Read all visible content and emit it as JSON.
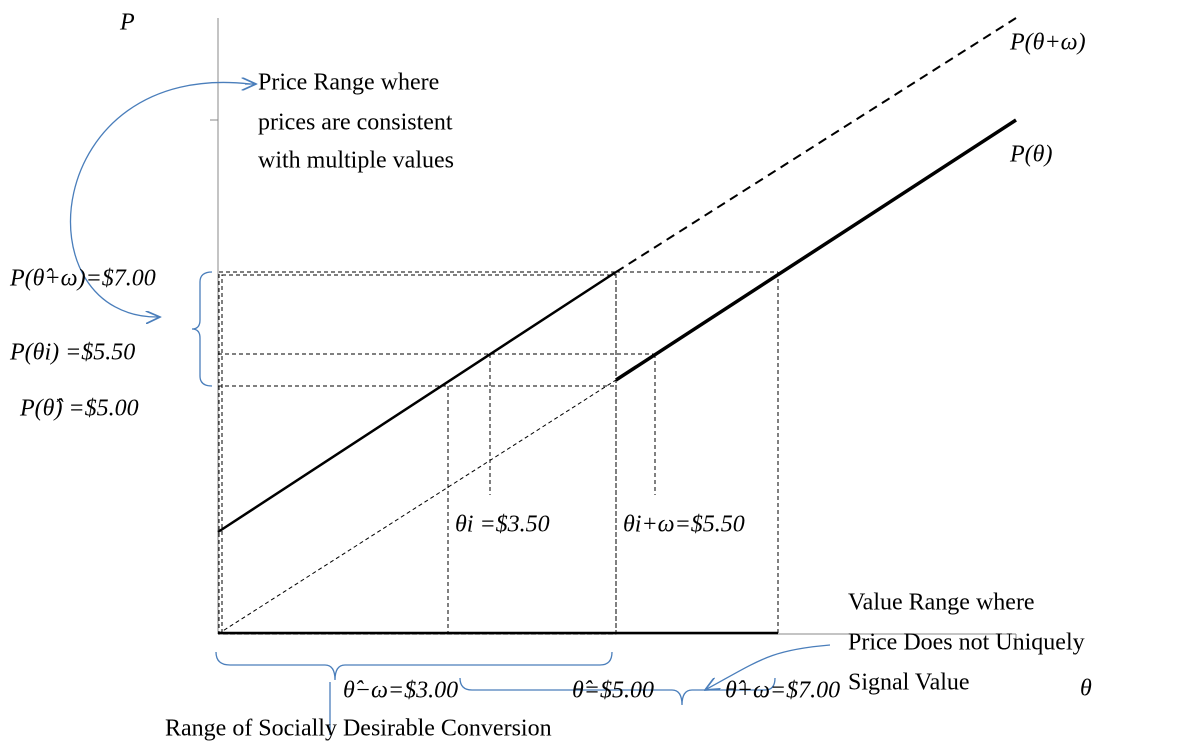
{
  "axes": {
    "y_label": "P",
    "x_label": "θ"
  },
  "curves": {
    "upper": "P(θ+ω)",
    "lower": "P(θ)"
  },
  "price_labels": [
    "P(θ̂+ω)=$7.00",
    "P(θi) =$5.50",
    "P(θ̂) =$5.00"
  ],
  "value_labels": [
    "θi =$3.50",
    "θi+ω=$5.50"
  ],
  "bottom_labels": [
    "θ̂−ω=$3.00",
    "θ̂=$5.00",
    "θ̂+ω=$7.00"
  ],
  "annotations": {
    "price_range": [
      "Price Range where",
      "prices are consistent",
      "with multiple values"
    ],
    "value_range": [
      "Value Range where",
      "Price Does not Uniquely",
      "Signal Value"
    ],
    "social_range": "Range of Socially Desirable Conversion"
  }
}
